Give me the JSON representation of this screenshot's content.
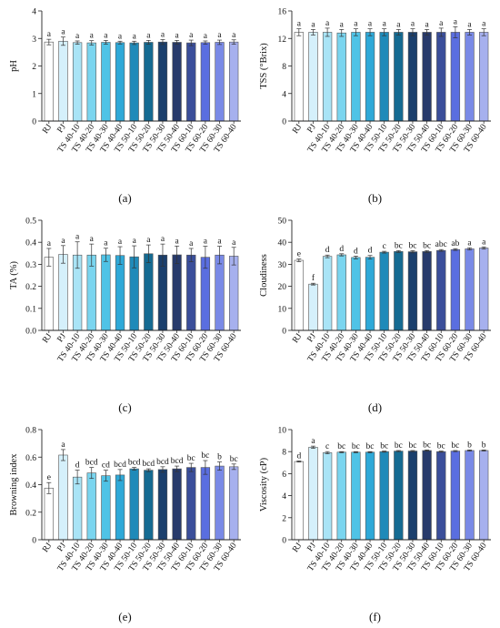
{
  "chart_data": [
    {
      "type": "bar",
      "panel_label": "(a)",
      "ylabel": "pH",
      "ylim": [
        0,
        4
      ],
      "yticks": [
        "0",
        "1",
        "2",
        "3",
        "4"
      ],
      "categories": [
        "RJ",
        "PJ",
        "TS 40-10",
        "TS 40-20",
        "TS 40-30",
        "TS 40-40",
        "TS 50-10",
        "TS 50-20",
        "TS 50-30",
        "TS 50-40",
        "TS 60-10",
        "TS 60-20",
        "TS 60-30",
        "TS 60-40"
      ],
      "values": [
        2.87,
        2.9,
        2.85,
        2.84,
        2.86,
        2.85,
        2.84,
        2.86,
        2.87,
        2.86,
        2.84,
        2.85,
        2.86,
        2.87
      ],
      "errors": [
        0.1,
        0.15,
        0.06,
        0.08,
        0.07,
        0.05,
        0.06,
        0.07,
        0.09,
        0.07,
        0.1,
        0.06,
        0.08,
        0.08
      ],
      "letters": [
        "a",
        "a",
        "a",
        "a",
        "a",
        "a",
        "a",
        "a",
        "a",
        "a",
        "a",
        "a",
        "a",
        "a"
      ]
    },
    {
      "type": "bar",
      "panel_label": "(b)",
      "ylabel": "TSS (°Brix)",
      "ylim": [
        0,
        16
      ],
      "yticks": [
        "0",
        "4",
        "8",
        "12",
        "16"
      ],
      "categories": [
        "RJ",
        "PJ",
        "TS 40-10",
        "TS 40-20",
        "TS 40-30",
        "TS 40-40",
        "TS 50-10",
        "TS 50-20",
        "TS 50-30",
        "TS 50-40",
        "TS 60-10",
        "TS 60-20",
        "TS 60-30",
        "TS 60-40"
      ],
      "values": [
        12.9,
        12.9,
        12.9,
        12.8,
        12.9,
        12.9,
        12.9,
        12.9,
        12.9,
        12.9,
        12.9,
        12.9,
        12.9,
        12.9
      ],
      "errors": [
        0.5,
        0.4,
        0.6,
        0.5,
        0.5,
        0.5,
        0.5,
        0.4,
        0.5,
        0.4,
        0.6,
        0.8,
        0.4,
        0.5
      ],
      "letters": [
        "a",
        "a",
        "a",
        "a",
        "a",
        "a",
        "a",
        "a",
        "a",
        "a",
        "a",
        "a",
        "a",
        "a"
      ]
    },
    {
      "type": "bar",
      "panel_label": "(c)",
      "ylabel": "TA (%)",
      "ylim": [
        0,
        0.5
      ],
      "yticks": [
        "0.0",
        "0.1",
        "0.2",
        "0.3",
        "0.4",
        "0.5"
      ],
      "categories": [
        "RJ",
        "PJ",
        "TS 40-10",
        "TS 40-20",
        "TS 40-30",
        "TS 40-40",
        "TS 50-10",
        "TS 50-20",
        "TS 50-30",
        "TS 50-40",
        "TS 60-10",
        "TS 60-20",
        "TS 60-30",
        "TS 60-40"
      ],
      "values": [
        0.332,
        0.345,
        0.342,
        0.342,
        0.343,
        0.34,
        0.334,
        0.348,
        0.342,
        0.343,
        0.342,
        0.332,
        0.342,
        0.337
      ],
      "errors": [
        0.04,
        0.04,
        0.06,
        0.05,
        0.03,
        0.04,
        0.05,
        0.04,
        0.05,
        0.04,
        0.03,
        0.05,
        0.04,
        0.04
      ],
      "letters": [
        "a",
        "a",
        "a",
        "a",
        "a",
        "a",
        "a",
        "a",
        "a",
        "a",
        "a",
        "a",
        "a",
        "a"
      ]
    },
    {
      "type": "bar",
      "panel_label": "(d)",
      "ylabel": "Cloudiness",
      "ylim": [
        0,
        50
      ],
      "yticks": [
        "0",
        "10",
        "20",
        "30",
        "40",
        "50"
      ],
      "categories": [
        "RJ",
        "PJ",
        "TS 40-10",
        "TS 40-20",
        "TS 40-30",
        "TS 40-40",
        "TS 50-10",
        "TS 50-20",
        "TS 50-30",
        "TS 50-40",
        "TS 60-10",
        "TS 60-20",
        "TS 60-30",
        "TS 60-40"
      ],
      "values": [
        31.8,
        21.0,
        33.6,
        34.3,
        33.1,
        33.2,
        35.5,
        35.8,
        35.7,
        35.8,
        36.3,
        36.7,
        37.0,
        37.4
      ],
      "errors": [
        0.6,
        0.4,
        0.6,
        0.5,
        0.6,
        0.8,
        0.4,
        0.4,
        0.5,
        0.4,
        0.4,
        0.4,
        0.5,
        0.5
      ],
      "letters": [
        "e",
        "f",
        "d",
        "d",
        "d",
        "d",
        "c",
        "bc",
        "bc",
        "bc",
        "abc",
        "ab",
        "a",
        "a"
      ]
    },
    {
      "type": "bar",
      "panel_label": "(e)",
      "ylabel": "Browning index",
      "ylim": [
        0,
        0.8
      ],
      "yticks": [
        "0",
        "0.2",
        "0.4",
        "0.6",
        "0.8"
      ],
      "categories": [
        "RJ",
        "PJ",
        "TS 40-10",
        "TS 40-20",
        "TS 40-30",
        "TS 40-40",
        "TS 50-10",
        "TS 50-20",
        "TS 50-30",
        "TS 50-40",
        "TS 60-10",
        "TS 60-20",
        "TS 60-30",
        "TS 60-40"
      ],
      "values": [
        0.375,
        0.615,
        0.455,
        0.485,
        0.465,
        0.47,
        0.515,
        0.505,
        0.51,
        0.515,
        0.525,
        0.525,
        0.535,
        0.53
      ],
      "errors": [
        0.04,
        0.04,
        0.05,
        0.04,
        0.04,
        0.04,
        0.01,
        0.01,
        0.02,
        0.02,
        0.03,
        0.05,
        0.03,
        0.02
      ],
      "letters": [
        "e",
        "a",
        "d",
        "bcd",
        "cd",
        "bcd",
        "bcd",
        "bcd",
        "bcd",
        "bcd",
        "bc",
        "bc",
        "b",
        "bc"
      ]
    },
    {
      "type": "bar",
      "panel_label": "(f)",
      "ylabel": "Viscosity (cP)",
      "ylim": [
        0,
        10
      ],
      "yticks": [
        "0",
        "2",
        "4",
        "6",
        "8",
        "10"
      ],
      "categories": [
        "RJ",
        "PJ",
        "TS 40-10",
        "TS 40-20",
        "TS 40-30",
        "TS 40-40",
        "TS 50-10",
        "TS 50-20",
        "TS 50-30",
        "TS 50-40",
        "TS 60-10",
        "TS 60-20",
        "TS 60-30",
        "TS 60-40"
      ],
      "values": [
        7.1,
        8.4,
        7.9,
        7.95,
        7.95,
        7.95,
        8.0,
        8.05,
        8.05,
        8.1,
        8.0,
        8.05,
        8.1,
        8.1
      ],
      "errors": [
        0.05,
        0.1,
        0.1,
        0.05,
        0.05,
        0.05,
        0.05,
        0.05,
        0.05,
        0.05,
        0.05,
        0.05,
        0.05,
        0.05
      ],
      "letters": [
        "d",
        "a",
        "c",
        "bc",
        "bc",
        "bc",
        "bc",
        "bc",
        "bc",
        "bc",
        "bc",
        "bc",
        "b",
        "b"
      ]
    }
  ],
  "bar_colors": [
    "#ffffff",
    "#d5f0fb",
    "#a9e4f6",
    "#7ad5ef",
    "#4fc3e6",
    "#2fa9d8",
    "#1f8ab9",
    "#156b92",
    "#1a3f6d",
    "#273a6b",
    "#3a4e9a",
    "#5a6ee0",
    "#7a8ae6",
    "#a6b0ee"
  ]
}
